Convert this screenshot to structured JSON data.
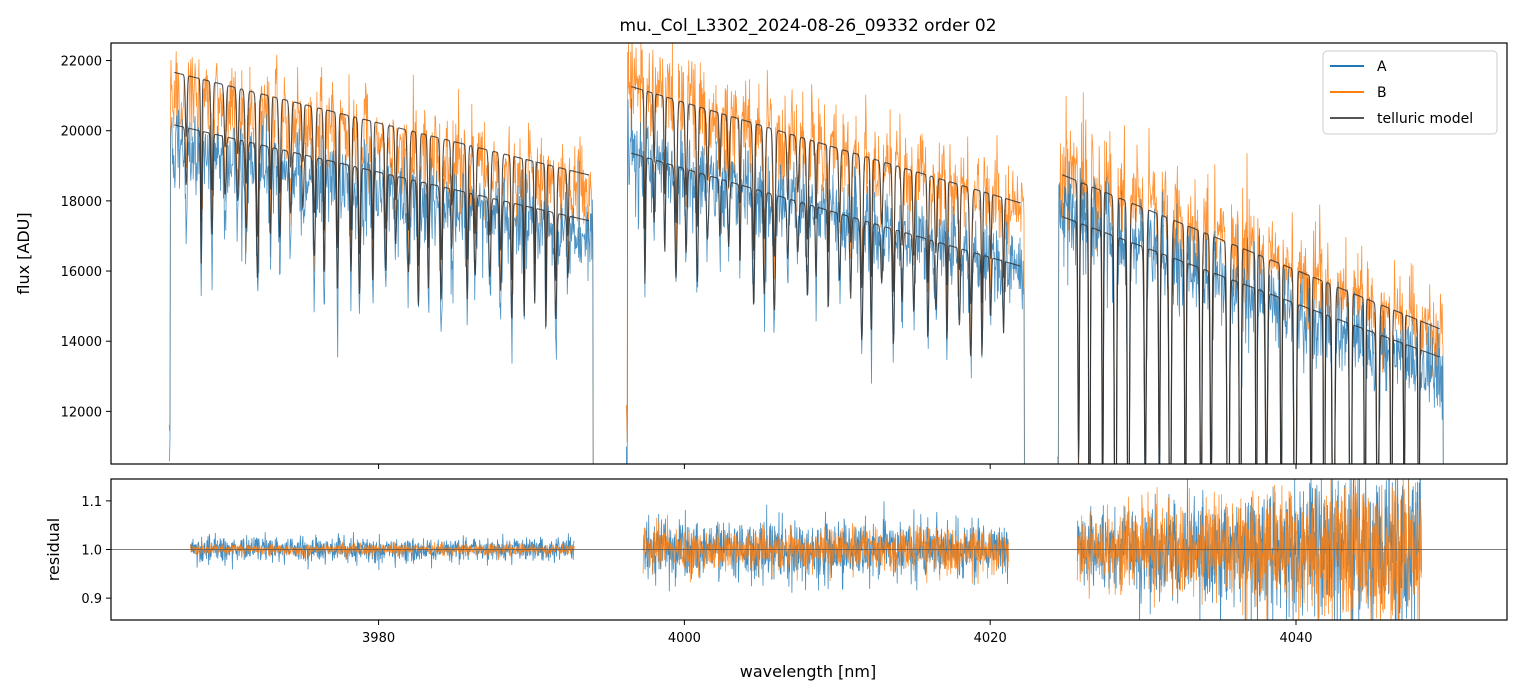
{
  "chart_data": [
    {
      "type": "line",
      "panel": "top",
      "title": "mu._Col_L3302_2024-08-26_09332  order 02",
      "xlabel": "",
      "ylabel": "flux [ADU]",
      "xlim": [
        3962.5,
        4053.8
      ],
      "ylim": [
        10500,
        22500
      ],
      "yticks": [
        12000,
        14000,
        16000,
        18000,
        20000,
        22000
      ],
      "ytick_labels": [
        "12000",
        "14000",
        "16000",
        "18000",
        "20000",
        "22000"
      ],
      "xticks": [
        3980,
        4000,
        4020,
        4040
      ],
      "legend": {
        "placement": "top-right",
        "entries": [
          "A",
          "B",
          "telluric model"
        ]
      },
      "colors": {
        "A": "#1f77b4",
        "B": "#ff7f0e",
        "model": "#333333"
      },
      "segments": [
        {
          "x_start": 3966.3,
          "x_end": 3994.1,
          "A_start": 19500,
          "A_end": 17000,
          "B_start": 21200,
          "B_end": 18300,
          "modelA_start": 20200,
          "modelA_end": 17400,
          "modelB_start": 21700,
          "modelB_end": 18700
        },
        {
          "x_start": 3996.2,
          "x_end": 4022.3,
          "A_start": 19400,
          "A_end": 16000,
          "B_start": 21400,
          "B_end": 17800,
          "modelA_start": 19400,
          "modelA_end": 16100,
          "modelB_start": 21300,
          "modelB_end": 17900
        },
        {
          "x_start": 4024.4,
          "x_end": 4049.7,
          "A_start": 17800,
          "A_end": 13000,
          "B_start": 19000,
          "B_end": 14200,
          "modelA_start": 17600,
          "modelA_end": 13500,
          "modelB_start": 18800,
          "modelB_end": 14300
        }
      ],
      "series": [
        {
          "name": "A",
          "description": "observed flux, trace A"
        },
        {
          "name": "B",
          "description": "observed flux, trace B"
        },
        {
          "name": "telluric model",
          "description": "model fit for A and B"
        }
      ]
    },
    {
      "type": "line",
      "panel": "bottom",
      "xlabel": "wavelength [nm]",
      "ylabel": "residual",
      "xlim": [
        3962.5,
        4053.8
      ],
      "ylim": [
        0.855,
        1.145
      ],
      "yticks": [
        0.9,
        1.0,
        1.1
      ],
      "ytick_labels": [
        "0.9",
        "1.0",
        "1.1"
      ],
      "xticks": [
        3980,
        4000,
        4020,
        4040
      ],
      "xtick_labels": [
        "3980",
        "4000",
        "4020",
        "4040"
      ],
      "reference_line": 1.0,
      "segments": [
        {
          "x_start": 3967.7,
          "x_end": 3992.8,
          "noise_A": 0.012,
          "noise_B": 0.006
        },
        {
          "x_start": 3997.3,
          "x_end": 4021.2,
          "noise_A": 0.03,
          "noise_B": 0.022
        },
        {
          "x_start": 4025.7,
          "x_end": 4048.2,
          "noise_A": 0.055,
          "noise_B": 0.05
        }
      ],
      "series": [
        {
          "name": "A"
        },
        {
          "name": "B"
        }
      ]
    }
  ]
}
